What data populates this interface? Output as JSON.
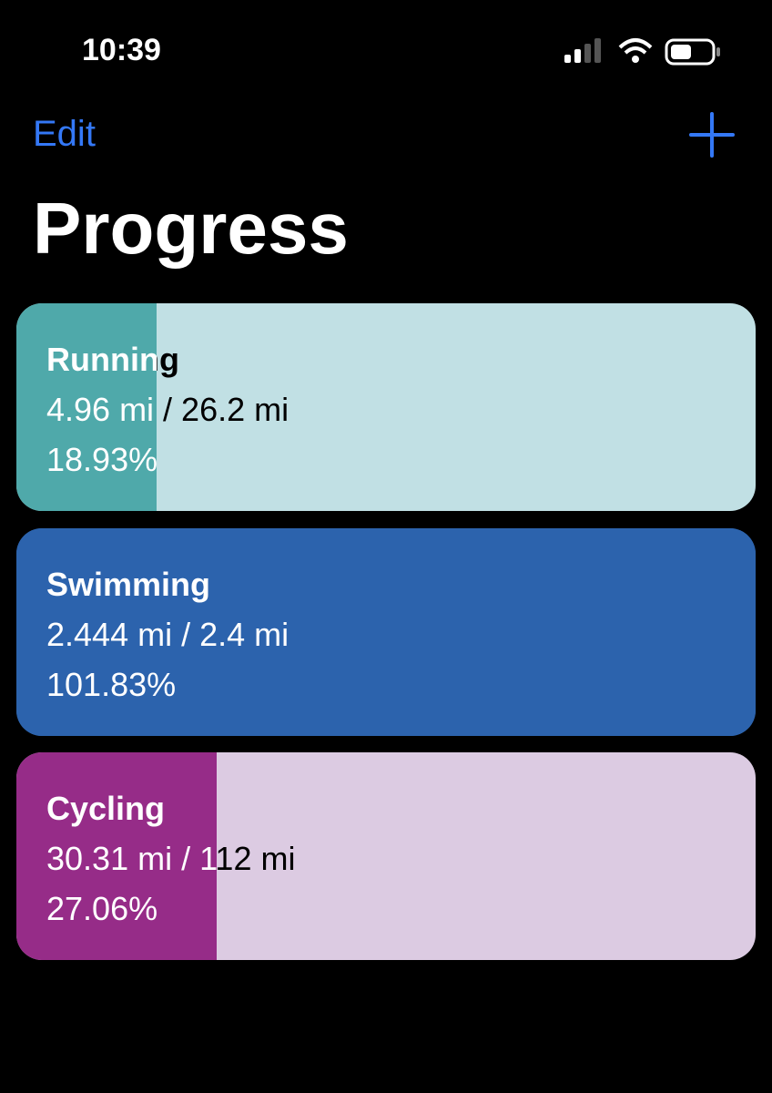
{
  "status_bar": {
    "time": "10:39"
  },
  "nav": {
    "edit": "Edit",
    "title": "Progress"
  },
  "cards": [
    {
      "name": "Running",
      "distance": "4.96 mi / 26.2 mi",
      "percent": {
        "value": 18.93,
        "label": "18.93%"
      },
      "fill_color": "#4fa9aa",
      "track_color": "#c1e0e4",
      "text_color": "#000000"
    },
    {
      "name": "Swimming",
      "distance": "2.444 mi / 2.4 mi",
      "percent": {
        "value": 101.83,
        "label": "101.83%"
      },
      "fill_color": "#2c63ad",
      "track_color": "#2c63ad",
      "text_color": "#ffffff"
    },
    {
      "name": "Cycling",
      "distance": "30.31 mi / 112 mi",
      "percent": {
        "value": 27.06,
        "label": "27.06%"
      },
      "fill_color": "#962c88",
      "track_color": "#dccbe2",
      "text_color": "#000000"
    }
  ]
}
